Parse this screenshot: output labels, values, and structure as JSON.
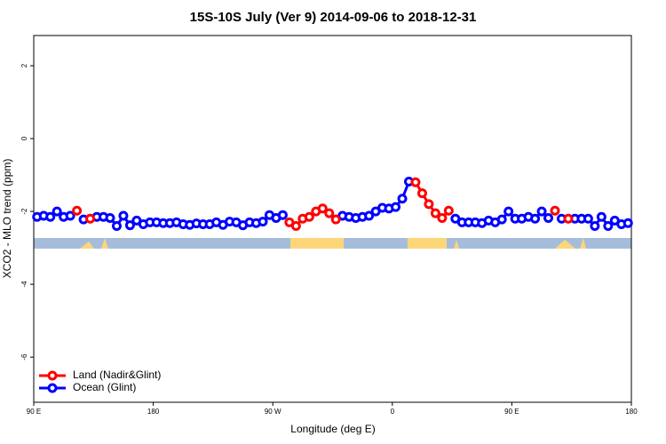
{
  "chart_data": {
    "type": "line",
    "title": "15S-10S July (Ver 9)   2014-09-06 to 2018-12-31",
    "x_label": "Longitude (deg E)",
    "y_label": "XCO2 - MLO trend (ppm)",
    "xlim": [
      90,
      540
    ],
    "ylim": [
      -7.24,
      2.83
    ],
    "xticks": [
      {
        "value": 90,
        "label": "90 E"
      },
      180,
      {
        "value": 270,
        "label": "90 W"
      },
      {
        "value": 360,
        "label": "0"
      },
      {
        "value": 450,
        "label": "90 E"
      },
      {
        "value": 540,
        "label": "180"
      }
    ],
    "yticks": [
      2,
      0,
      -2,
      -4,
      -6
    ],
    "legend": "bottom-left",
    "x": [
      92.5,
      97.5,
      102.5,
      107.5,
      112.5,
      117.5,
      122.5,
      127.5,
      132.5,
      137.5,
      142.5,
      147.5,
      152.5,
      157.5,
      162.5,
      167.5,
      172.5,
      177.5,
      182.5,
      187.5,
      192.5,
      197.5,
      202.5,
      207.5,
      212.5,
      217.5,
      222.5,
      227.5,
      232.5,
      237.5,
      242.5,
      247.5,
      252.5,
      257.5,
      262.5,
      267.5,
      272.5,
      277.5,
      282.5,
      287.5,
      292.5,
      297.5,
      302.5,
      307.5,
      312.5,
      317.5,
      322.5,
      327.5,
      332.5,
      337.5,
      342.5,
      347.5,
      352.5,
      357.5,
      362.5,
      367.5,
      372.5,
      377.5,
      382.5,
      387.5,
      392.5,
      397.5,
      402.5,
      407.5,
      412.5,
      417.5,
      422.5,
      427.5,
      432.5,
      437.5,
      442.5,
      447.5,
      452.5,
      457.5,
      462.5,
      467.5,
      472.5,
      477.5,
      482.5,
      487.5,
      492.5,
      497.5,
      502.5,
      507.5,
      512.5,
      517.5,
      522.5,
      527.5,
      532.5,
      537.5
    ],
    "series": [
      {
        "name": "Land (Nadir&Glint)",
        "color": "#ff0000",
        "values": [
          null,
          null,
          null,
          null,
          null,
          null,
          -1.98,
          null,
          -2.2,
          null,
          null,
          null,
          null,
          null,
          null,
          null,
          null,
          null,
          null,
          null,
          null,
          null,
          null,
          null,
          null,
          null,
          null,
          null,
          null,
          null,
          null,
          null,
          null,
          null,
          null,
          null,
          null,
          null,
          -2.3,
          -2.4,
          -2.2,
          -2.15,
          -2.0,
          -1.92,
          -2.05,
          -2.22,
          null,
          null,
          null,
          null,
          null,
          null,
          null,
          null,
          null,
          null,
          null,
          -1.2,
          -1.5,
          -1.8,
          -2.05,
          -2.18,
          -1.98,
          null,
          null,
          null,
          null,
          null,
          null,
          null,
          null,
          null,
          null,
          null,
          null,
          null,
          null,
          null,
          -1.98,
          null,
          -2.2,
          null,
          null,
          null,
          null,
          null,
          null,
          null,
          null,
          null
        ]
      },
      {
        "name": "Ocean (Glint)",
        "color": "#0000ff",
        "values": [
          -2.15,
          -2.12,
          -2.15,
          -2.0,
          -2.15,
          -2.12,
          null,
          -2.22,
          null,
          -2.15,
          -2.15,
          -2.18,
          -2.4,
          -2.12,
          -2.38,
          -2.25,
          -2.35,
          -2.3,
          -2.3,
          -2.32,
          -2.32,
          -2.3,
          -2.35,
          -2.37,
          -2.33,
          -2.35,
          -2.35,
          -2.3,
          -2.37,
          -2.28,
          -2.3,
          -2.38,
          -2.3,
          -2.32,
          -2.28,
          -2.1,
          -2.18,
          -2.1,
          null,
          null,
          null,
          null,
          null,
          null,
          null,
          null,
          -2.12,
          -2.15,
          -2.18,
          -2.15,
          -2.12,
          -2.0,
          -1.9,
          -1.92,
          -1.88,
          -1.65,
          -1.18,
          null,
          null,
          null,
          null,
          null,
          null,
          -2.2,
          -2.3,
          -2.3,
          -2.3,
          -2.32,
          -2.25,
          -2.3,
          -2.22,
          -2.0,
          -2.2,
          -2.2,
          -2.15,
          -2.2,
          -2.0,
          -2.18,
          null,
          -2.2,
          null,
          -2.2,
          -2.2,
          -2.2,
          -2.4,
          -2.15,
          -2.4,
          -2.25,
          -2.35,
          -2.32
        ]
      }
    ]
  }
}
